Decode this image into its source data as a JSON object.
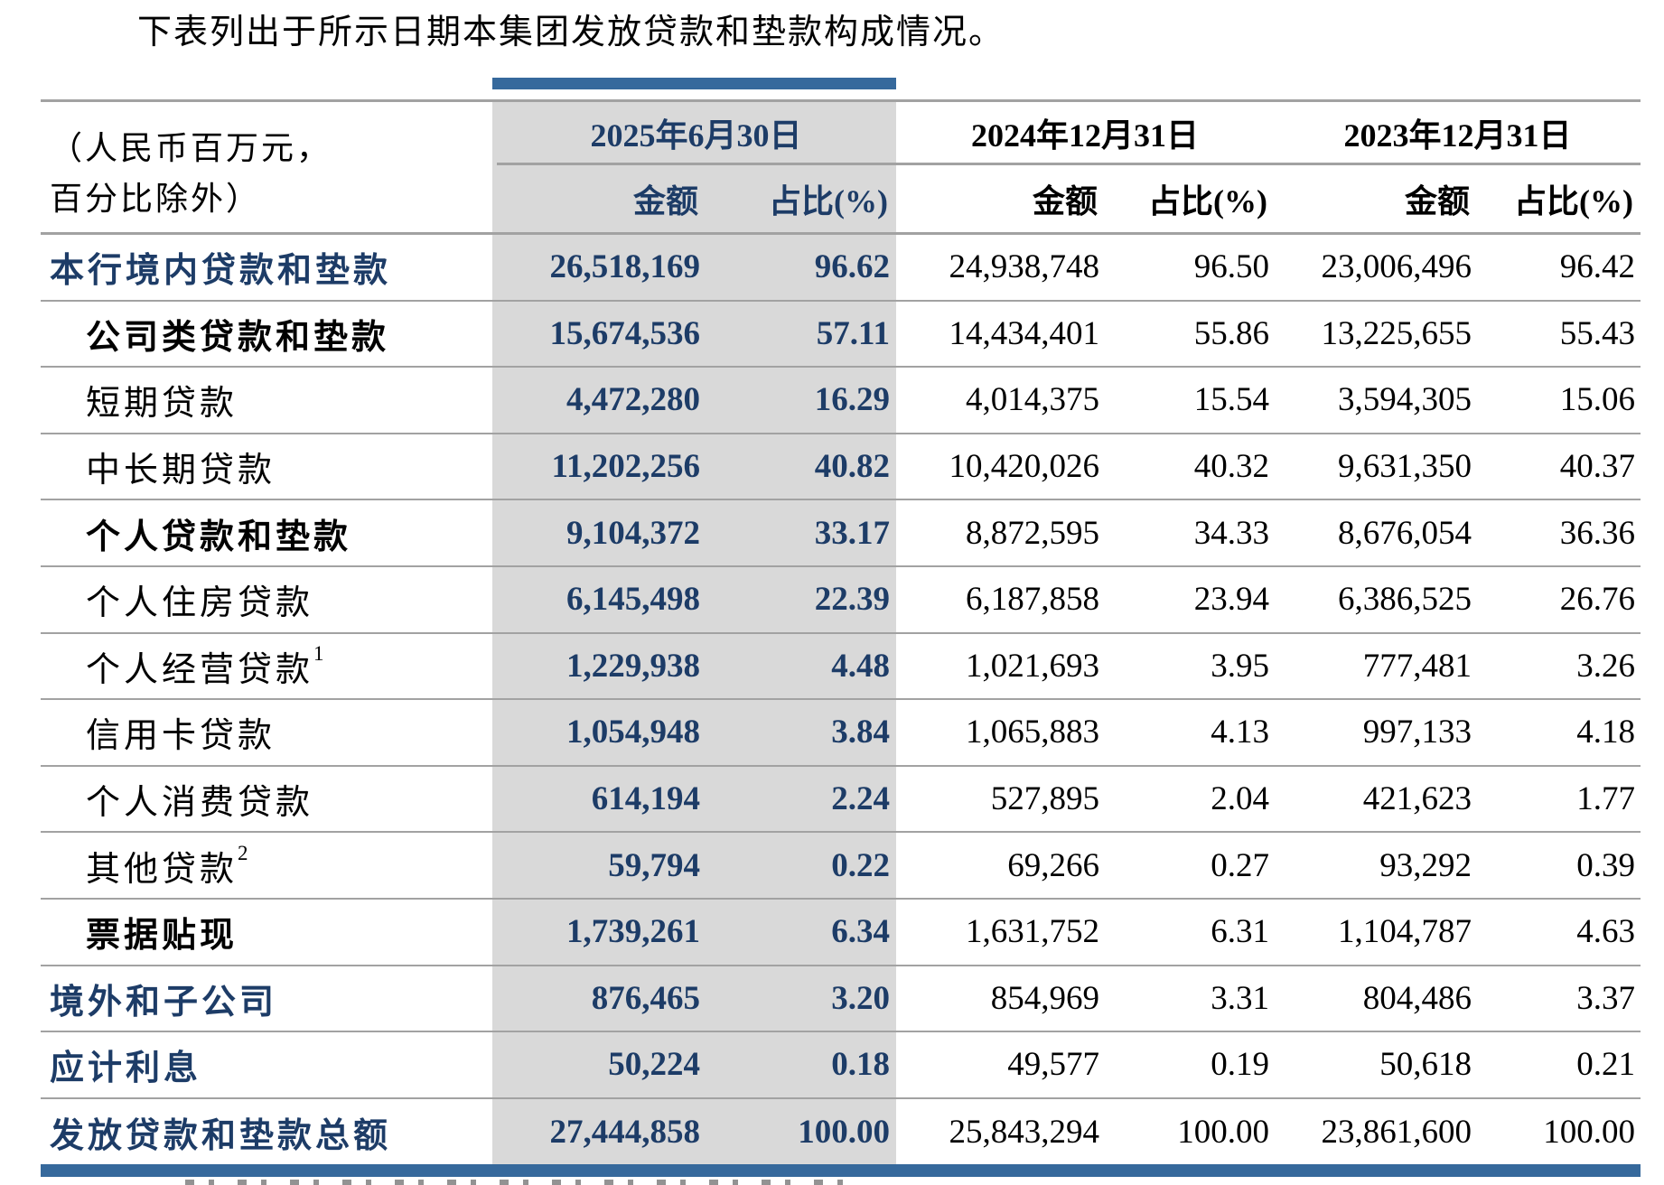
{
  "title": "下表列出于所示日期本集团发放贷款和垫款构成情况。",
  "table": {
    "unit_note": [
      "（人民币百万元，",
      "百分比除外）"
    ],
    "col_groups": [
      {
        "date": "2025年6月30日",
        "amount": "金额",
        "pct": "占比(%)",
        "highlight": true
      },
      {
        "date": "2024年12月31日",
        "amount": "金额",
        "pct": "占比(%)",
        "highlight": false
      },
      {
        "date": "2023年12月31日",
        "amount": "金额",
        "pct": "占比(%)",
        "highlight": false
      }
    ],
    "rows": [
      {
        "label": "本行境内贷款和垫款",
        "sup": "",
        "bold": true,
        "navy": true,
        "indent": 0,
        "values": [
          "26,518,169",
          "96.62",
          "24,938,748",
          "96.50",
          "23,006,496",
          "96.42"
        ]
      },
      {
        "label": "公司类贷款和垫款",
        "sup": "",
        "bold": true,
        "navy": false,
        "indent": 1,
        "values": [
          "15,674,536",
          "57.11",
          "14,434,401",
          "55.86",
          "13,225,655",
          "55.43"
        ]
      },
      {
        "label": "短期贷款",
        "sup": "",
        "bold": false,
        "navy": false,
        "indent": 1,
        "values": [
          "4,472,280",
          "16.29",
          "4,014,375",
          "15.54",
          "3,594,305",
          "15.06"
        ]
      },
      {
        "label": "中长期贷款",
        "sup": "",
        "bold": false,
        "navy": false,
        "indent": 1,
        "values": [
          "11,202,256",
          "40.82",
          "10,420,026",
          "40.32",
          "9,631,350",
          "40.37"
        ]
      },
      {
        "label": "个人贷款和垫款",
        "sup": "",
        "bold": true,
        "navy": false,
        "indent": 1,
        "values": [
          "9,104,372",
          "33.17",
          "8,872,595",
          "34.33",
          "8,676,054",
          "36.36"
        ]
      },
      {
        "label": "个人住房贷款",
        "sup": "",
        "bold": false,
        "navy": false,
        "indent": 1,
        "values": [
          "6,145,498",
          "22.39",
          "6,187,858",
          "23.94",
          "6,386,525",
          "26.76"
        ]
      },
      {
        "label": "个人经营贷款",
        "sup": "1",
        "bold": false,
        "navy": false,
        "indent": 1,
        "values": [
          "1,229,938",
          "4.48",
          "1,021,693",
          "3.95",
          "777,481",
          "3.26"
        ]
      },
      {
        "label": "信用卡贷款",
        "sup": "",
        "bold": false,
        "navy": false,
        "indent": 1,
        "values": [
          "1,054,948",
          "3.84",
          "1,065,883",
          "4.13",
          "997,133",
          "4.18"
        ]
      },
      {
        "label": "个人消费贷款",
        "sup": "",
        "bold": false,
        "navy": false,
        "indent": 1,
        "values": [
          "614,194",
          "2.24",
          "527,895",
          "2.04",
          "421,623",
          "1.77"
        ]
      },
      {
        "label": "其他贷款",
        "sup": "2",
        "bold": false,
        "navy": false,
        "indent": 1,
        "values": [
          "59,794",
          "0.22",
          "69,266",
          "0.27",
          "93,292",
          "0.39"
        ]
      },
      {
        "label": "票据贴现",
        "sup": "",
        "bold": true,
        "navy": false,
        "indent": 1,
        "values": [
          "1,739,261",
          "6.34",
          "1,631,752",
          "6.31",
          "1,104,787",
          "4.63"
        ]
      },
      {
        "label": "境外和子公司",
        "sup": "",
        "bold": true,
        "navy": true,
        "indent": 0,
        "values": [
          "876,465",
          "3.20",
          "854,969",
          "3.31",
          "804,486",
          "3.37"
        ]
      },
      {
        "label": "应计利息",
        "sup": "",
        "bold": true,
        "navy": true,
        "indent": 0,
        "values": [
          "50,224",
          "0.18",
          "49,577",
          "0.19",
          "50,618",
          "0.21"
        ]
      },
      {
        "label": "发放贷款和垫款总额",
        "sup": "",
        "bold": true,
        "navy": true,
        "indent": 0,
        "values": [
          "27,444,858",
          "100.00",
          "25,843,294",
          "100.00",
          "23,861,600",
          "100.00"
        ]
      }
    ]
  },
  "colors": {
    "accent_blue": "#36699c",
    "navy_text": "#1d3c67",
    "highlight_bg": "#d9d9d9",
    "grid_line": "#a2a2a2"
  }
}
